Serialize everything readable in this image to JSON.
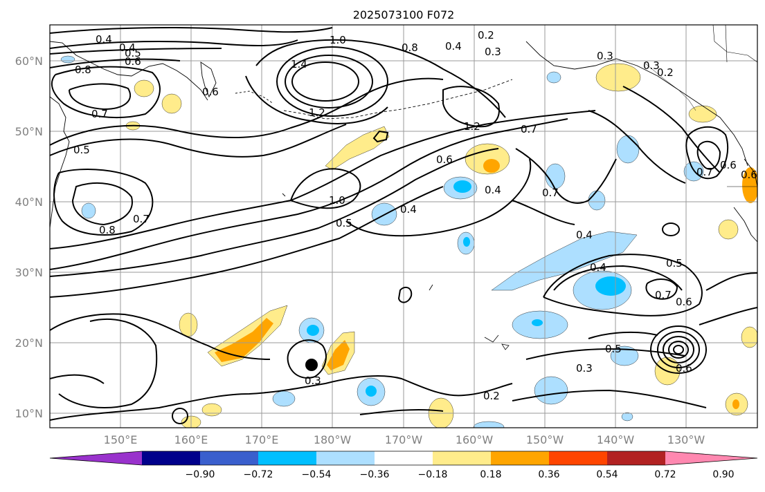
{
  "title": "2025073100 F072",
  "x_ticks": [
    "150°E",
    "160°E",
    "170°E",
    "180°W",
    "170°W",
    "160°W",
    "150°W",
    "140°W",
    "130°W"
  ],
  "y_ticks": [
    "60°N",
    "50°N",
    "40°N",
    "30°N",
    "20°N",
    "10°N"
  ],
  "colorbar": {
    "labels": [
      "−0.90",
      "−0.72",
      "−0.54",
      "−0.36",
      "−0.18",
      "0.18",
      "0.36",
      "0.54",
      "0.72",
      "0.90"
    ],
    "colors": [
      "#9932CC",
      "#00008B",
      "#3A5FCD",
      "#00BFFF",
      "#ADDFFF",
      "#FFFFFF",
      "#FFEC8B",
      "#FFA500",
      "#FF4500",
      "#B22222",
      "#FF88B0"
    ]
  },
  "contour_labels": [
    "0.4",
    "0.4",
    "0.5",
    "0.6",
    "0.8",
    "1.0",
    "0.8",
    "0.4",
    "0.3",
    "0.2",
    "1.4",
    "1.2",
    "1.2",
    "0.7",
    "0.6",
    "1.0",
    "0.5",
    "0.4",
    "0.4",
    "0.7",
    "0.7",
    "0.5",
    "0.8",
    "0.7",
    "0.6",
    "0.3",
    "0.3",
    "0.2",
    "0.4",
    "0.4",
    "0.5",
    "0.7",
    "0.6",
    "0.5",
    "0.6",
    "0.3",
    "0.3",
    "0.6",
    "0.7",
    "0.6",
    "0.2"
  ]
}
